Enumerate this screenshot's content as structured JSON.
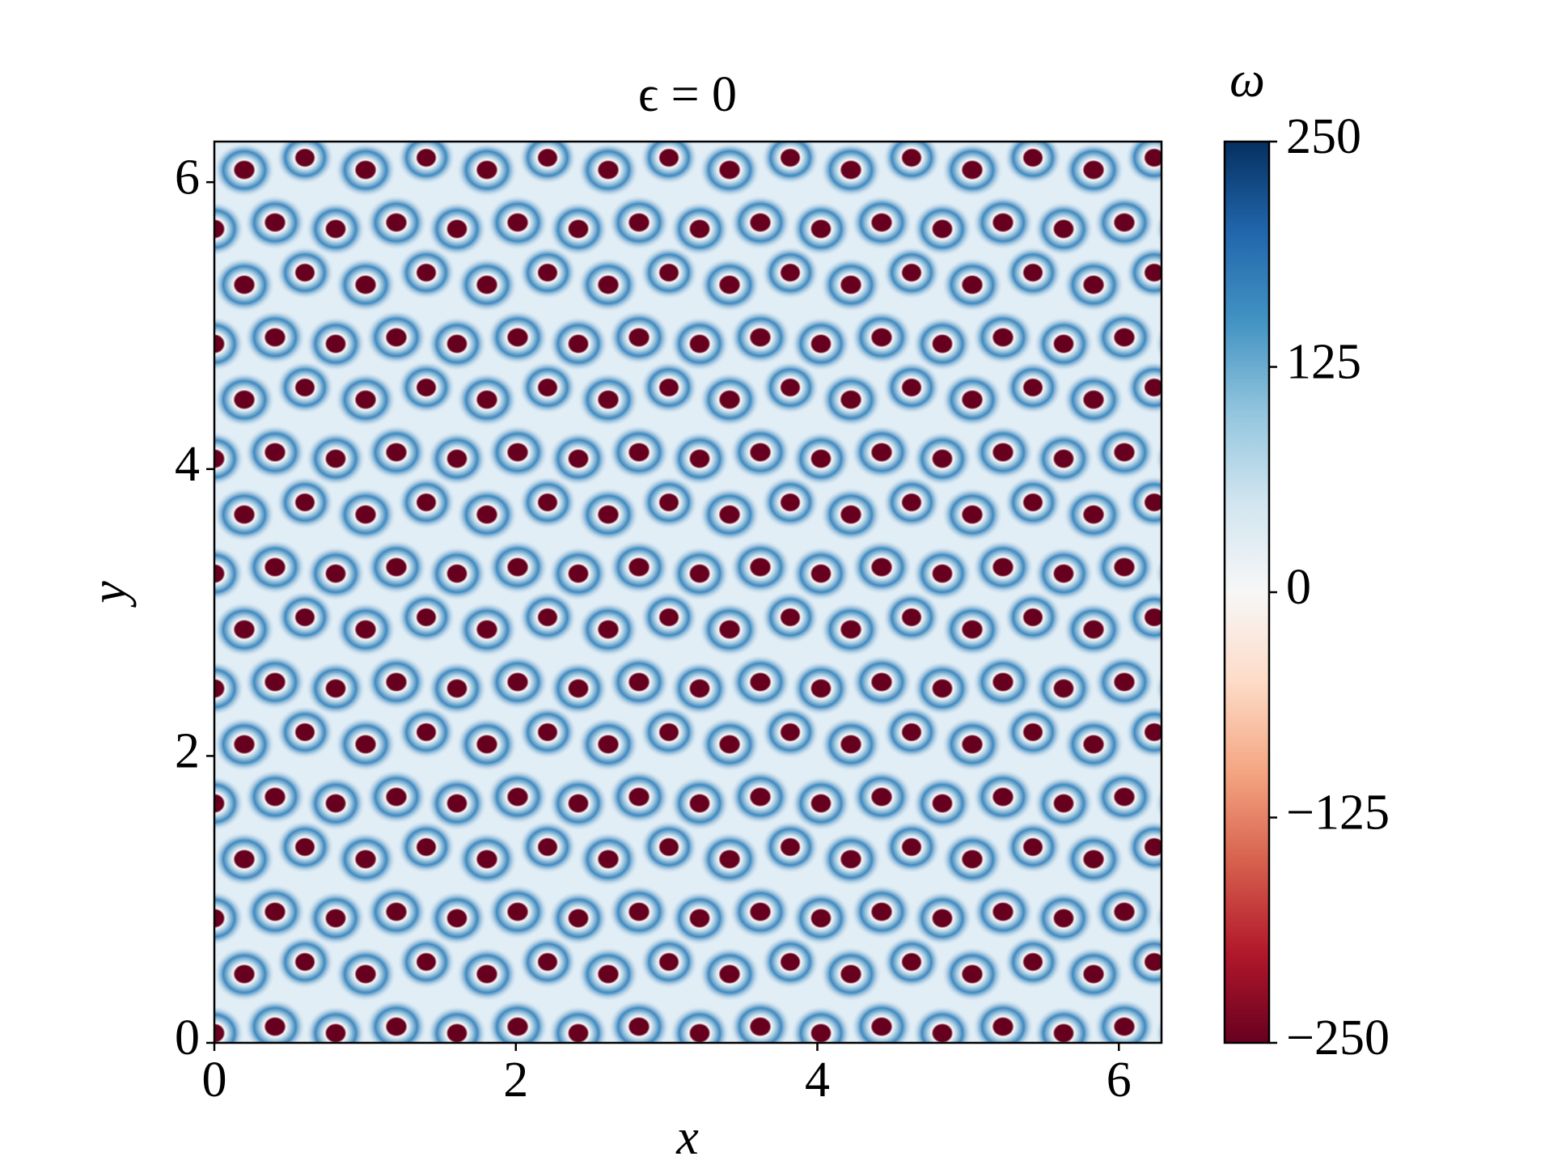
{
  "chart_data": {
    "type": "heatmap",
    "title": "ϵ = 0",
    "x_label": "x",
    "y_label": "y",
    "xlim": [
      0,
      6.283
    ],
    "ylim": [
      0,
      6.283
    ],
    "xticks": [
      0,
      2,
      4,
      6
    ],
    "yticks": [
      0,
      2,
      4,
      6
    ],
    "colorbar": {
      "label": "ω",
      "lim": [
        -250,
        250
      ],
      "ticks": [
        {
          "value": -250,
          "label": "−250"
        },
        {
          "value": -125,
          "label": "−125"
        },
        0,
        125,
        250
      ],
      "colormap": [
        "#67001f",
        "#b2182b",
        "#d6604d",
        "#f4a582",
        "#fddbc7",
        "#f7f7f7",
        "#d1e5f0",
        "#92c5de",
        "#4393c3",
        "#2166ac",
        "#053061"
      ]
    }
  }
}
